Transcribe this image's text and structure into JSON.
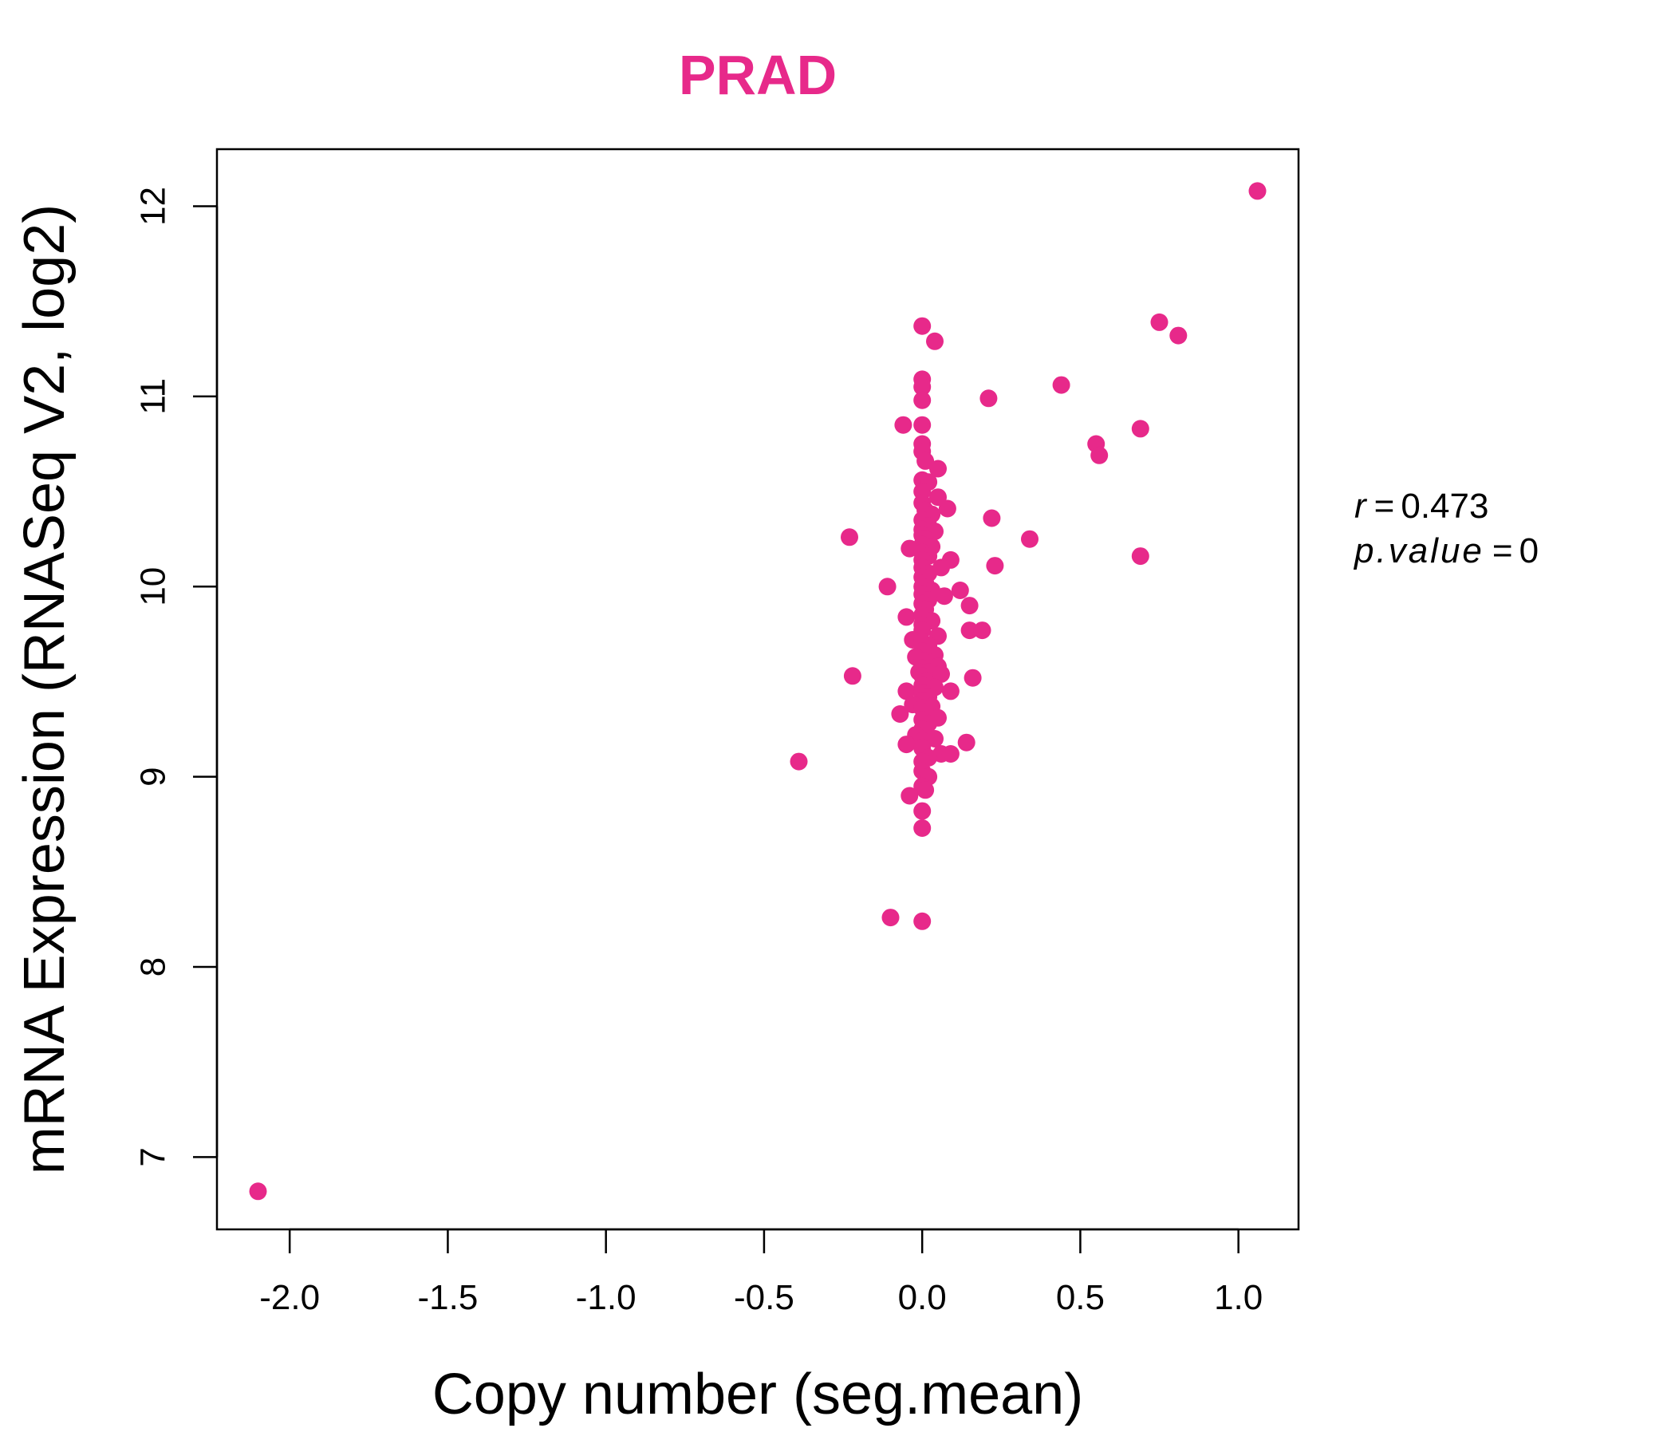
{
  "chart_data": {
    "type": "scatter",
    "title": "PRAD",
    "xlabel": "Copy number (seg.mean)",
    "ylabel": "mRNA Expression (RNASeq V2, log2)",
    "xlim": [
      -2.23,
      1.19
    ],
    "ylim": [
      6.62,
      12.3
    ],
    "xticks": [
      -2.0,
      -1.5,
      -1.0,
      -0.5,
      0.0,
      0.5,
      1.0
    ],
    "xtick_labels": [
      "-2.0",
      "-1.5",
      "-1.0",
      "-0.5",
      "0.0",
      "0.5",
      "1.0"
    ],
    "yticks": [
      7,
      8,
      9,
      10,
      11,
      12
    ],
    "ytick_labels": [
      "7",
      "8",
      "9",
      "10",
      "11",
      "12"
    ],
    "grid": false,
    "legend": "none",
    "series": [
      {
        "name": "PRAD",
        "color": "#E7298A",
        "points": [
          [
            -2.1,
            6.82
          ],
          [
            1.06,
            12.08
          ],
          [
            0.75,
            11.39
          ],
          [
            0.81,
            11.32
          ],
          [
            0.44,
            11.06
          ],
          [
            0.21,
            10.99
          ],
          [
            0.69,
            10.83
          ],
          [
            0.55,
            10.75
          ],
          [
            0.56,
            10.69
          ],
          [
            0.34,
            10.25
          ],
          [
            0.69,
            10.16
          ],
          [
            0.22,
            10.36
          ],
          [
            0.23,
            10.11
          ],
          [
            -0.23,
            10.26
          ],
          [
            -0.11,
            10.0
          ],
          [
            -0.22,
            9.53
          ],
          [
            -0.39,
            9.08
          ],
          [
            -0.1,
            8.26
          ],
          [
            0.0,
            8.24
          ],
          [
            0.0,
            11.37
          ],
          [
            0.04,
            11.29
          ],
          [
            0.0,
            11.09
          ],
          [
            0.0,
            11.05
          ],
          [
            0.0,
            10.98
          ],
          [
            -0.06,
            10.85
          ],
          [
            0.0,
            10.85
          ],
          [
            0.0,
            10.75
          ],
          [
            0.0,
            10.71
          ],
          [
            0.01,
            10.66
          ],
          [
            0.05,
            10.62
          ],
          [
            0.0,
            10.56
          ],
          [
            0.02,
            10.55
          ],
          [
            0.0,
            10.5
          ],
          [
            0.05,
            10.47
          ],
          [
            0.0,
            10.44
          ],
          [
            0.08,
            10.41
          ],
          [
            0.01,
            10.4
          ],
          [
            0.03,
            10.38
          ],
          [
            0.0,
            10.35
          ],
          [
            0.02,
            10.32
          ],
          [
            0.0,
            10.3
          ],
          [
            0.04,
            10.29
          ],
          [
            0.0,
            10.27
          ],
          [
            0.01,
            10.25
          ],
          [
            0.0,
            10.22
          ],
          [
            0.03,
            10.21
          ],
          [
            -0.04,
            10.2
          ],
          [
            0.0,
            10.18
          ],
          [
            0.02,
            10.16
          ],
          [
            0.0,
            10.14
          ],
          [
            0.09,
            10.14
          ],
          [
            0.06,
            10.1
          ],
          [
            0.0,
            10.1
          ],
          [
            0.02,
            10.07
          ],
          [
            0.0,
            10.05
          ],
          [
            0.01,
            10.02
          ],
          [
            0.0,
            10.0
          ],
          [
            0.03,
            9.98
          ],
          [
            0.12,
            9.98
          ],
          [
            0.0,
            9.96
          ],
          [
            0.07,
            9.95
          ],
          [
            0.02,
            9.93
          ],
          [
            0.0,
            9.91
          ],
          [
            0.15,
            9.9
          ],
          [
            0.01,
            9.88
          ],
          [
            -0.05,
            9.84
          ],
          [
            0.0,
            9.85
          ],
          [
            0.03,
            9.82
          ],
          [
            0.0,
            9.8
          ],
          [
            0.15,
            9.77
          ],
          [
            0.19,
            9.77
          ],
          [
            0.0,
            9.77
          ],
          [
            0.05,
            9.74
          ],
          [
            -0.03,
            9.72
          ],
          [
            0.0,
            9.71
          ],
          [
            0.02,
            9.69
          ],
          [
            0.0,
            9.66
          ],
          [
            0.04,
            9.64
          ],
          [
            -0.02,
            9.63
          ],
          [
            0.0,
            9.61
          ],
          [
            0.03,
            9.6
          ],
          [
            0.05,
            9.58
          ],
          [
            0.0,
            9.57
          ],
          [
            -0.01,
            9.55
          ],
          [
            0.02,
            9.55
          ],
          [
            0.06,
            9.54
          ],
          [
            0.0,
            9.53
          ],
          [
            0.16,
            9.52
          ],
          [
            0.01,
            9.5
          ],
          [
            0.0,
            9.48
          ],
          [
            0.04,
            9.47
          ],
          [
            -0.05,
            9.45
          ],
          [
            0.09,
            9.45
          ],
          [
            0.0,
            9.44
          ],
          [
            0.02,
            9.42
          ],
          [
            0.0,
            9.4
          ],
          [
            -0.03,
            9.38
          ],
          [
            0.03,
            9.37
          ],
          [
            0.0,
            9.36
          ],
          [
            0.01,
            9.34
          ],
          [
            -0.07,
            9.33
          ],
          [
            0.05,
            9.31
          ],
          [
            0.0,
            9.3
          ],
          [
            0.02,
            9.28
          ],
          [
            0.0,
            9.25
          ],
          [
            -0.02,
            9.22
          ],
          [
            0.04,
            9.2
          ],
          [
            0.0,
            9.19
          ],
          [
            0.14,
            9.18
          ],
          [
            -0.05,
            9.17
          ],
          [
            0.0,
            9.15
          ],
          [
            0.06,
            9.12
          ],
          [
            0.09,
            9.12
          ],
          [
            0.02,
            9.1
          ],
          [
            0.0,
            9.08
          ],
          [
            0.0,
            9.03
          ],
          [
            0.02,
            9.0
          ],
          [
            0.0,
            8.95
          ],
          [
            0.01,
            8.93
          ],
          [
            -0.04,
            8.9
          ],
          [
            0.0,
            8.82
          ],
          [
            0.0,
            8.73
          ]
        ]
      }
    ],
    "annotations": {
      "r_label": "r",
      "r_value": "0.473",
      "p_label": "p.value",
      "p_value": "0"
    }
  }
}
